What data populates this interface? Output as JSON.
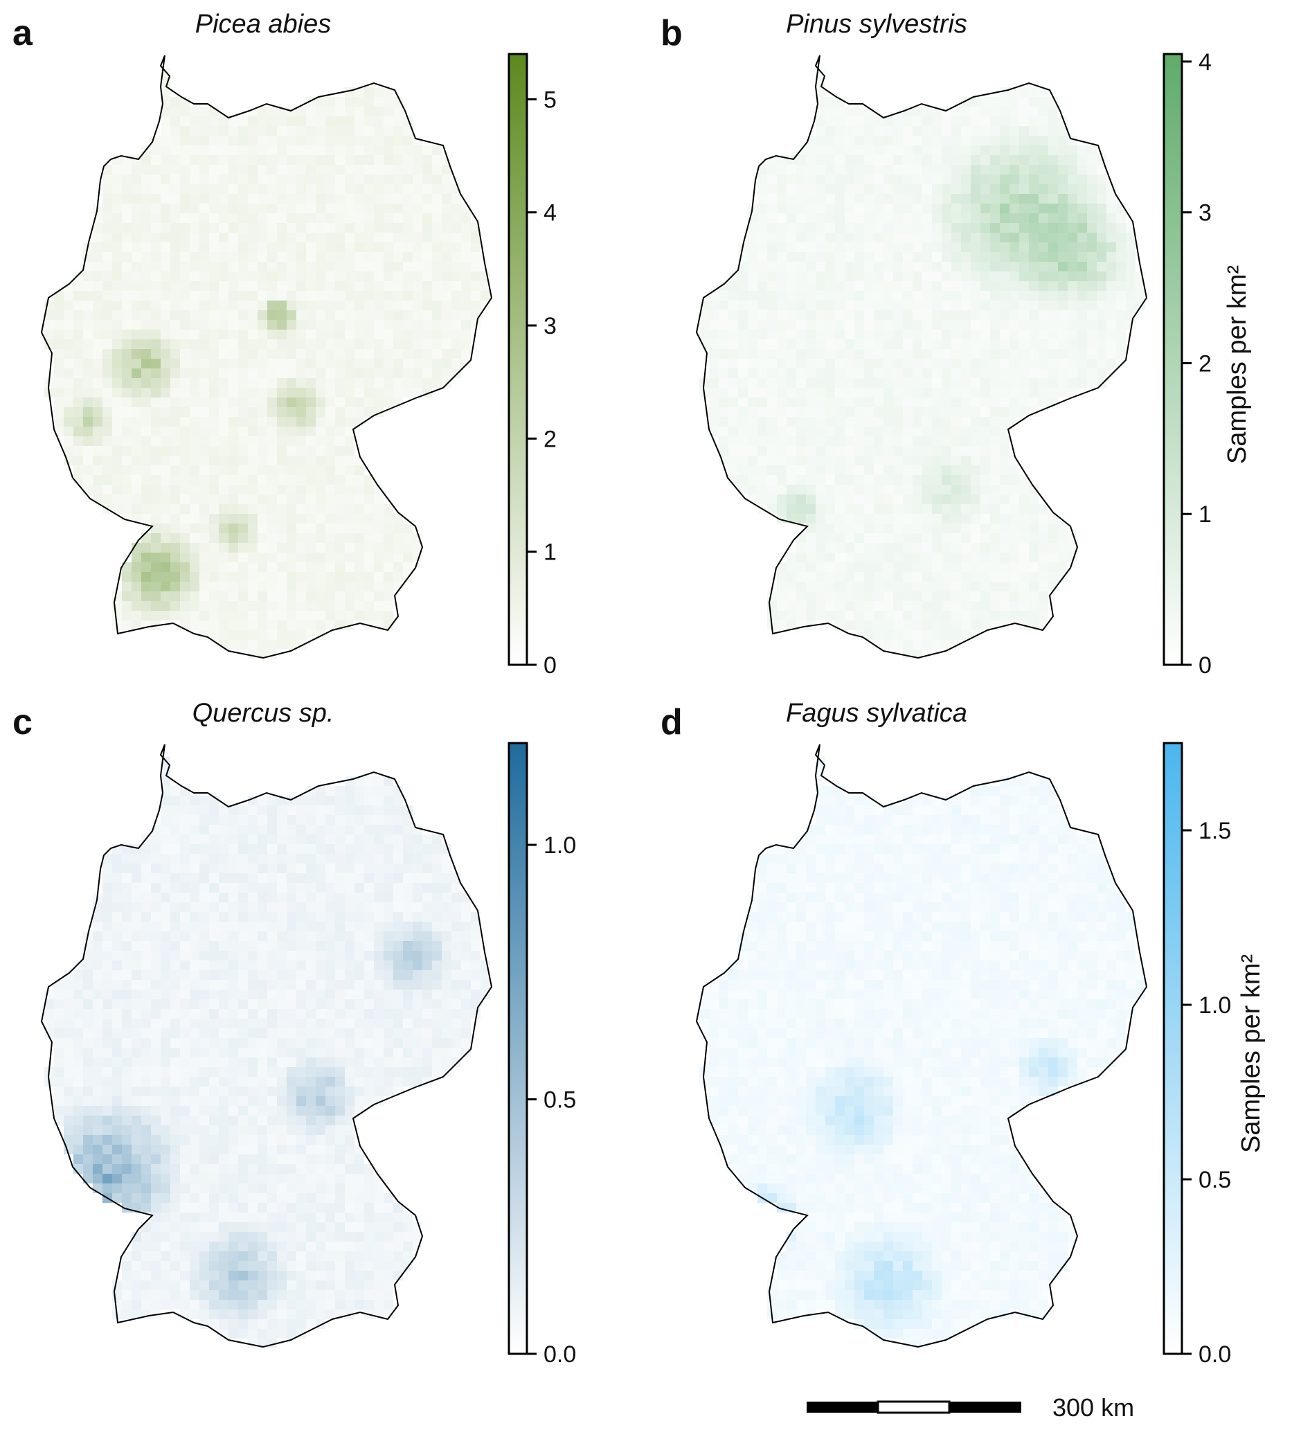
{
  "figure": {
    "scale_bar_label": "300 km",
    "colorbar_title": "Samples per km²"
  },
  "panels": [
    {
      "letter": "a",
      "title": "Picea abies",
      "color": "#5b8a1e",
      "ticks": [
        "0",
        "1",
        "2",
        "3",
        "4",
        "5"
      ],
      "tick_values": [
        0,
        1,
        2,
        3,
        4,
        5
      ],
      "vmax": 5.4,
      "show_cb_title": false
    },
    {
      "letter": "b",
      "title": "Pinus sylvestris",
      "color": "#5fab6a",
      "ticks": [
        "0",
        "1",
        "2",
        "3",
        "4"
      ],
      "tick_values": [
        0,
        1,
        2,
        3,
        4
      ],
      "vmax": 4.05,
      "show_cb_title": true
    },
    {
      "letter": "c",
      "title": "Quercus sp.",
      "color": "#1f6b9c",
      "ticks": [
        "0.0",
        "0.5",
        "1.0"
      ],
      "tick_values": [
        0,
        0.5,
        1.0
      ],
      "vmax": 1.2,
      "show_cb_title": false
    },
    {
      "letter": "d",
      "title": "Fagus sylvatica",
      "color": "#4bb6ee",
      "ticks": [
        "0.0",
        "0.5",
        "1.0",
        "1.5"
      ],
      "tick_values": [
        0,
        0.5,
        1.0,
        1.5
      ],
      "vmax": 1.75,
      "show_cb_title": true
    }
  ],
  "chart_data": {
    "type": "heatmap",
    "description_units": "Samples per km²",
    "panels": [
      "Picea abies",
      "Pinus sylvestris",
      "Quercus sp.",
      "Fagus sylvatica"
    ]
  }
}
